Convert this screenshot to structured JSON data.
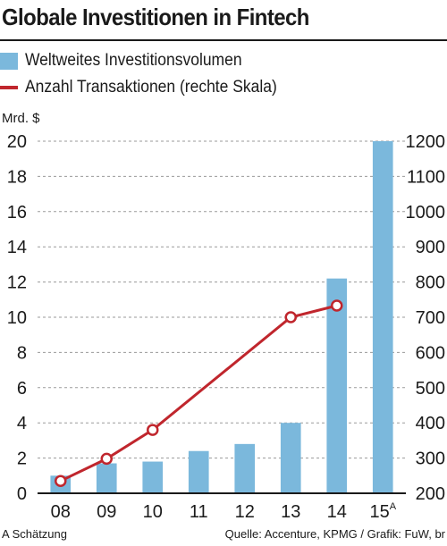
{
  "title": "Globale Investitionen in Fintech",
  "legend": {
    "bars": "Weltweites Investitionsvolumen",
    "line": "Anzahl Transaktionen (rechte Skala)"
  },
  "colors": {
    "bars": "#7bb8dc",
    "line": "#c0262d",
    "grid": "#9a9a9a"
  },
  "chart_data": {
    "type": "bar",
    "categories": [
      "08",
      "09",
      "10",
      "11",
      "12",
      "13",
      "14",
      "15"
    ],
    "category_superscripts": [
      "",
      "",
      "",
      "",
      "",
      "",
      "",
      "A"
    ],
    "unit_left": "Mrd. $",
    "series": [
      {
        "name": "Weltweites Investitionsvolumen",
        "type": "bar",
        "axis": "left",
        "values": [
          1.0,
          1.7,
          1.8,
          2.4,
          2.8,
          4.0,
          12.2,
          20.0
        ]
      },
      {
        "name": "Anzahl Transaktionen (rechte Skala)",
        "type": "line",
        "axis": "right",
        "values": [
          235,
          298,
          380,
          null,
          null,
          700,
          733,
          null
        ]
      }
    ],
    "ylim_left": [
      0,
      20
    ],
    "yticks_left": [
      0,
      2,
      4,
      6,
      8,
      10,
      12,
      14,
      16,
      18,
      20
    ],
    "ylim_right": [
      200,
      1200
    ],
    "yticks_right": [
      200,
      300,
      400,
      500,
      600,
      700,
      800,
      900,
      1000,
      1100,
      1200
    ],
    "grid": "horizontal dashed",
    "legend_position": "top-left"
  },
  "footer": {
    "note": "A Schätzung",
    "source": "Quelle: Accenture, KPMG / Grafik: FuW, br"
  }
}
